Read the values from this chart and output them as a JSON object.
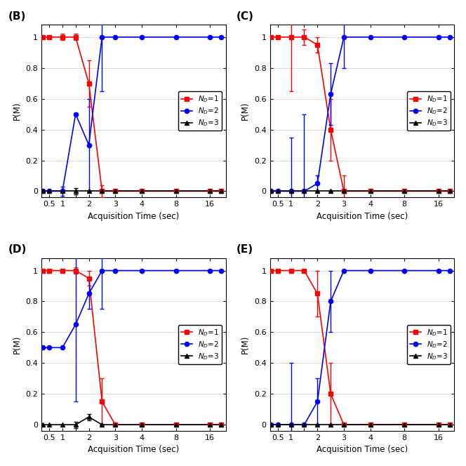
{
  "colors": {
    "red": "#FF0000",
    "blue": "#0000FF",
    "black": "#000000"
  },
  "panel_B": {
    "red": {
      "x": [
        0.25,
        0.5,
        1.0,
        1.5,
        2.0,
        2.5,
        3.0,
        4.0,
        8.0,
        16.0,
        20.0
      ],
      "y": [
        1.0,
        1.0,
        1.0,
        1.0,
        0.7,
        0.0,
        0.0,
        0.0,
        0.0,
        0.0,
        0.0
      ],
      "yerr": [
        0.0,
        0.0,
        0.02,
        0.02,
        0.15,
        0.04,
        0.0,
        0.0,
        0.0,
        0.0,
        0.0
      ]
    },
    "blue": {
      "x": [
        0.25,
        0.5,
        1.0,
        1.5,
        2.0,
        2.5,
        3.0,
        4.0,
        8.0,
        16.0,
        20.0
      ],
      "y": [
        0.0,
        0.0,
        0.0,
        0.5,
        0.3,
        1.0,
        1.0,
        1.0,
        1.0,
        1.0,
        1.0
      ],
      "yerr": [
        0.0,
        0.0,
        0.03,
        0.0,
        0.3,
        0.35,
        0.0,
        0.0,
        0.0,
        0.0,
        0.0
      ]
    },
    "black": {
      "x": [
        0.25,
        0.5,
        1.0,
        1.5,
        2.0,
        2.5,
        3.0,
        4.0,
        8.0,
        16.0,
        20.0
      ],
      "y": [
        0.0,
        0.0,
        0.0,
        0.0,
        0.0,
        0.0,
        0.0,
        0.0,
        0.0,
        0.0,
        0.0
      ],
      "yerr": [
        0.0,
        0.0,
        0.0,
        0.02,
        0.0,
        0.0,
        0.0,
        0.0,
        0.0,
        0.0,
        0.0
      ]
    }
  },
  "panel_C": {
    "red": {
      "x": [
        0.25,
        0.5,
        1.0,
        1.5,
        2.0,
        2.5,
        3.0,
        4.0,
        8.0,
        16.0,
        20.0
      ],
      "y": [
        1.0,
        1.0,
        1.0,
        1.0,
        0.95,
        0.4,
        0.0,
        0.0,
        0.0,
        0.0,
        0.0
      ],
      "yerr": [
        0.0,
        0.0,
        0.35,
        0.05,
        0.05,
        0.2,
        0.1,
        0.0,
        0.0,
        0.0,
        0.0
      ]
    },
    "blue": {
      "x": [
        0.25,
        0.5,
        1.0,
        1.5,
        2.0,
        2.5,
        3.0,
        4.0,
        8.0,
        16.0,
        20.0
      ],
      "y": [
        0.0,
        0.0,
        0.0,
        0.0,
        0.05,
        0.63,
        1.0,
        1.0,
        1.0,
        1.0,
        1.0
      ],
      "yerr": [
        0.0,
        0.0,
        0.35,
        0.5,
        0.05,
        0.2,
        0.2,
        0.0,
        0.0,
        0.0,
        0.0
      ]
    },
    "black": {
      "x": [
        0.25,
        0.5,
        1.0,
        1.5,
        2.0,
        2.5,
        3.0,
        4.0,
        8.0,
        16.0,
        20.0
      ],
      "y": [
        0.0,
        0.0,
        0.0,
        0.0,
        0.0,
        0.0,
        0.0,
        0.0,
        0.0,
        0.0,
        0.0
      ],
      "yerr": [
        0.0,
        0.0,
        0.0,
        0.0,
        0.0,
        0.0,
        0.0,
        0.0,
        0.0,
        0.0,
        0.0
      ]
    }
  },
  "panel_D": {
    "red": {
      "x": [
        0.25,
        0.5,
        1.0,
        1.5,
        2.0,
        2.5,
        3.0,
        4.0,
        8.0,
        16.0,
        20.0
      ],
      "y": [
        1.0,
        1.0,
        1.0,
        1.0,
        0.95,
        0.15,
        0.0,
        0.0,
        0.0,
        0.0,
        0.0
      ],
      "yerr": [
        0.0,
        0.0,
        0.0,
        0.02,
        0.05,
        0.15,
        0.0,
        0.0,
        0.0,
        0.0,
        0.0
      ]
    },
    "blue": {
      "x": [
        0.25,
        0.5,
        1.0,
        1.5,
        2.0,
        2.5,
        3.0,
        4.0,
        8.0,
        16.0,
        20.0
      ],
      "y": [
        0.5,
        0.5,
        0.5,
        0.65,
        0.85,
        1.0,
        1.0,
        1.0,
        1.0,
        1.0,
        1.0
      ],
      "yerr": [
        0.0,
        0.0,
        0.0,
        0.5,
        0.1,
        0.25,
        0.0,
        0.0,
        0.0,
        0.0,
        0.0
      ]
    },
    "black": {
      "x": [
        0.25,
        0.5,
        1.0,
        1.5,
        2.0,
        2.5,
        3.0,
        4.0,
        8.0,
        16.0,
        20.0
      ],
      "y": [
        0.0,
        0.0,
        0.0,
        0.0,
        0.05,
        0.0,
        0.0,
        0.0,
        0.0,
        0.0,
        0.0
      ],
      "yerr": [
        0.0,
        0.0,
        0.0,
        0.02,
        0.02,
        0.0,
        0.0,
        0.0,
        0.0,
        0.0,
        0.0
      ]
    }
  },
  "panel_E": {
    "red": {
      "x": [
        0.25,
        0.5,
        1.0,
        1.5,
        2.0,
        2.5,
        3.0,
        4.0,
        8.0,
        16.0,
        20.0
      ],
      "y": [
        1.0,
        1.0,
        1.0,
        1.0,
        0.85,
        0.2,
        0.0,
        0.0,
        0.0,
        0.0,
        0.0
      ],
      "yerr": [
        0.0,
        0.0,
        0.0,
        0.0,
        0.15,
        0.2,
        0.0,
        0.0,
        0.0,
        0.0,
        0.0
      ]
    },
    "blue": {
      "x": [
        0.25,
        0.5,
        1.0,
        1.5,
        2.0,
        2.5,
        3.0,
        4.0,
        8.0,
        16.0,
        20.0
      ],
      "y": [
        0.0,
        0.0,
        0.0,
        0.0,
        0.15,
        0.8,
        1.0,
        1.0,
        1.0,
        1.0,
        1.0
      ],
      "yerr": [
        0.0,
        0.0,
        0.4,
        0.0,
        0.15,
        0.2,
        0.0,
        0.0,
        0.0,
        0.0,
        0.0
      ]
    },
    "black": {
      "x": [
        0.25,
        0.5,
        1.0,
        1.5,
        2.0,
        2.5,
        3.0,
        4.0,
        8.0,
        16.0,
        20.0
      ],
      "y": [
        0.0,
        0.0,
        0.0,
        0.0,
        0.0,
        0.0,
        0.0,
        0.0,
        0.0,
        0.0,
        0.0
      ],
      "yerr": [
        0.0,
        0.0,
        0.0,
        0.0,
        0.0,
        0.0,
        0.0,
        0.0,
        0.0,
        0.0,
        0.0
      ]
    }
  },
  "x_tick_positions": [
    0.5,
    1.0,
    1.5,
    2.0,
    3.0,
    4.0,
    8.0,
    16.0
  ],
  "x_tick_labels": [
    "0.5",
    "1",
    "",
    "2",
    "3",
    "4",
    "8",
    "16"
  ],
  "xlim": [
    0.2,
    22.0
  ],
  "ylim": [
    0.0,
    1.05
  ],
  "yticks": [
    0.0,
    0.2,
    0.4,
    0.6,
    0.8,
    1.0
  ],
  "ytick_labels": [
    "0",
    "0.2",
    "0.4",
    "0.6",
    "0.8",
    "1"
  ]
}
